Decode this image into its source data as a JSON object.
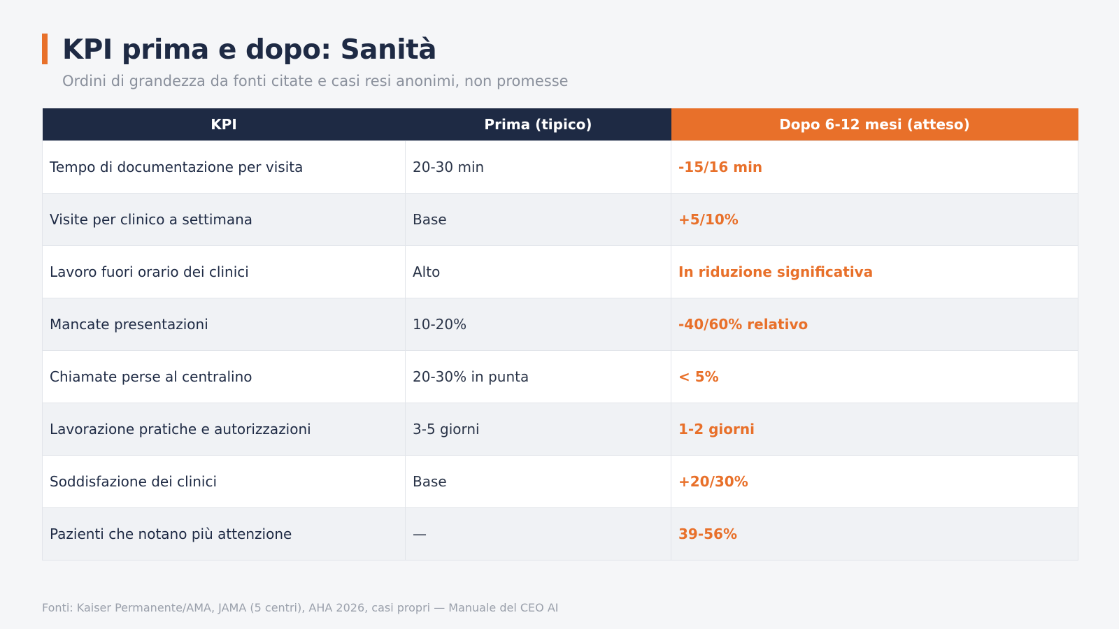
{
  "header": {
    "title": "KPI prima e dopo: Sanità",
    "subtitle": "Ordini di grandezza da fonti citate e casi resi anonimi, non promesse",
    "accent_color": "#e8702a"
  },
  "table": {
    "columns": [
      "KPI",
      "Prima (tipico)",
      "Dopo 6-12 mesi (atteso)"
    ],
    "rows": [
      {
        "kpi": "Tempo di documentazione per visita",
        "before": "20-30 min",
        "after": "-15/16 min"
      },
      {
        "kpi": "Visite per clinico a settimana",
        "before": "Base",
        "after": "+5/10%"
      },
      {
        "kpi": "Lavoro fuori orario dei clinici",
        "before": "Alto",
        "after": "In riduzione significativa"
      },
      {
        "kpi": "Mancate presentazioni",
        "before": "10-20%",
        "after": "-40/60% relativo"
      },
      {
        "kpi": "Chiamate perse al centralino",
        "before": "20-30% in punta",
        "after": "< 5%"
      },
      {
        "kpi": "Lavorazione pratiche e autorizzazioni",
        "before": "3-5 giorni",
        "after": "1-2 giorni"
      },
      {
        "kpi": "Soddisfazione dei clinici",
        "before": "Base",
        "after": "+20/30%"
      },
      {
        "kpi": "Pazienti che notano più attenzione",
        "before": "—",
        "after": "39-56%"
      }
    ],
    "header_color": "#1e2a44",
    "highlight_color": "#e8702a"
  },
  "footer": {
    "note": "Fonti: Kaiser Permanente/AMA, JAMA (5 centri), AHA 2026, casi propri — Manuale del CEO AI"
  }
}
